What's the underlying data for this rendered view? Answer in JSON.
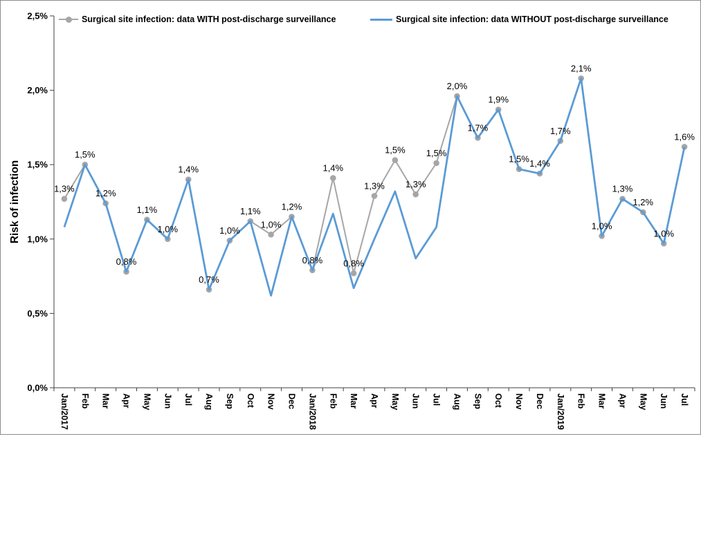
{
  "legend": {
    "with_label": "Surgical site infection: data WITH post-discharge surveillance",
    "without_label": "Surgical site infection: data WITHOUT post-discharge surveillance"
  },
  "colors": {
    "series_with": "#a6a6a6",
    "series_without": "#5b9bd5",
    "axis": "#404040",
    "text": "#000000",
    "frame_border": "#8c8c8c"
  },
  "chart_data": {
    "type": "line",
    "title": "",
    "y_axis_title": "Risk of infection",
    "x_axis_title": "",
    "ylim": [
      0,
      2.5
    ],
    "y_ticks": [
      "0,0%",
      "0,5%",
      "1,0%",
      "1,5%",
      "2,0%",
      "2,5%"
    ],
    "y_tick_values": [
      0,
      0.5,
      1.0,
      1.5,
      2.0,
      2.5
    ],
    "grid": false,
    "legend_position": "top",
    "categories": [
      "Jan/2017",
      "Feb",
      "Mar",
      "Apr",
      "May",
      "Jun",
      "Jul",
      "Aug",
      "Sep",
      "Oct",
      "Nov",
      "Dec",
      "Jan/2018",
      "Feb",
      "Mar",
      "Apr",
      "May",
      "Jun",
      "Jul",
      "Aug",
      "Sep",
      "Oct",
      "Nov",
      "Dec",
      "Jan/2019",
      "Feb",
      "Mar",
      "Apr",
      "May",
      "Jun",
      "Jul"
    ],
    "series": [
      {
        "name": "Surgical site infection: data WITH post-discharge surveillance",
        "color": "#a6a6a6",
        "marker": "circle",
        "line_width": 2,
        "values": [
          1.27,
          1.5,
          1.24,
          0.78,
          1.13,
          1.0,
          1.4,
          0.66,
          0.99,
          1.12,
          1.03,
          1.15,
          0.79,
          1.41,
          0.77,
          1.29,
          1.53,
          1.3,
          1.51,
          1.96,
          1.68,
          1.87,
          1.47,
          1.44,
          1.66,
          2.08,
          1.02,
          1.27,
          1.18,
          0.97,
          1.62
        ],
        "data_labels": [
          "1,3%",
          "1,5%",
          "1,2%",
          "0,8%",
          "1,1%",
          "1,0%",
          "1,4%",
          "0,7%",
          "1,0%",
          "1,1%",
          "1,0%",
          "1,2%",
          "0,8%",
          "1,4%",
          "0,8%",
          "1,3%",
          "1,5%",
          "1,3%",
          "1,5%",
          "2,0%",
          "1,7%",
          "1,9%",
          "1,5%",
          "1,4%",
          "1,7%",
          "2,1%",
          "1,0%",
          "1,3%",
          "1,2%",
          "1,0%",
          "1,6%"
        ]
      },
      {
        "name": "Surgical site infection: data WITHOUT post-discharge surveillance",
        "color": "#5b9bd5",
        "marker": "none",
        "line_width": 2.8,
        "values": [
          1.08,
          1.5,
          1.24,
          0.78,
          1.13,
          1.0,
          1.4,
          0.66,
          0.99,
          1.12,
          0.62,
          1.15,
          0.79,
          1.17,
          0.67,
          1.0,
          1.32,
          0.87,
          1.08,
          1.96,
          1.68,
          1.87,
          1.47,
          1.44,
          1.66,
          2.08,
          1.02,
          1.27,
          1.18,
          0.97,
          1.62
        ]
      }
    ]
  }
}
